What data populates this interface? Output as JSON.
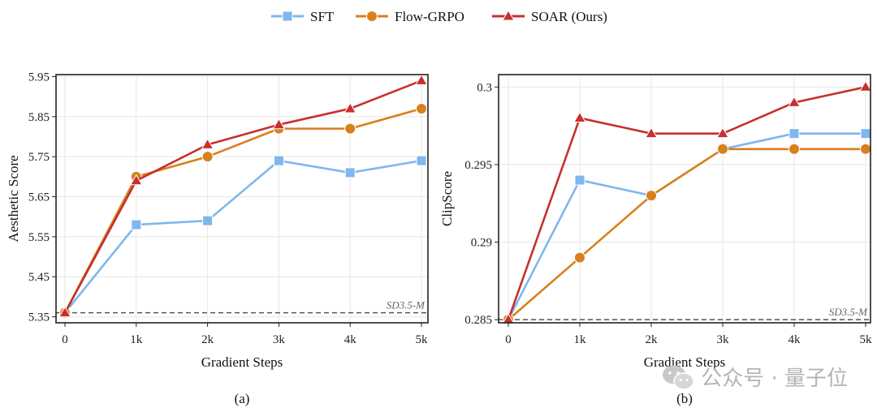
{
  "legend": [
    {
      "name": "SFT",
      "color": "#7fb7ee",
      "marker": "square"
    },
    {
      "name": "Flow-GRPO",
      "color": "#d8801d",
      "marker": "circle"
    },
    {
      "name": "SOAR (Ours)",
      "color": "#c7302f",
      "marker": "triangle"
    }
  ],
  "watermark": {
    "text": "公众号 · 量子位",
    "icon": "wechat-icon"
  },
  "chart_data": [
    {
      "type": "line",
      "panel_label": "(a)",
      "xlabel": "Gradient Steps",
      "ylabel": "Aesthetic Score",
      "categories": [
        "0",
        "1k",
        "2k",
        "3k",
        "4k",
        "5k"
      ],
      "ylim": [
        5.335,
        5.955
      ],
      "yticks": [
        "5.35",
        "5.45",
        "5.55",
        "5.65",
        "5.75",
        "5.85",
        "5.95"
      ],
      "grid": true,
      "baseline": {
        "label": "SD3.5-M",
        "value": 5.36
      },
      "series": [
        {
          "name": "SFT",
          "values": [
            5.36,
            5.58,
            5.59,
            5.74,
            5.71,
            5.74
          ]
        },
        {
          "name": "Flow-GRPO",
          "values": [
            5.36,
            5.7,
            5.75,
            5.82,
            5.82,
            5.87
          ]
        },
        {
          "name": "SOAR (Ours)",
          "values": [
            5.36,
            5.69,
            5.78,
            5.83,
            5.87,
            5.94
          ]
        }
      ]
    },
    {
      "type": "line",
      "panel_label": "(b)",
      "xlabel": "Gradient Steps",
      "ylabel": "ClipScore",
      "categories": [
        "0",
        "1k",
        "2k",
        "3k",
        "4k",
        "5k"
      ],
      "ylim": [
        0.2848,
        0.3008
      ],
      "yticks": [
        "0.285",
        "0.29",
        "0.295",
        "0.3"
      ],
      "grid": true,
      "baseline": {
        "label": "SD3.5-M",
        "value": 0.285
      },
      "series": [
        {
          "name": "SFT",
          "values": [
            0.285,
            0.294,
            0.293,
            0.296,
            0.297,
            0.297
          ]
        },
        {
          "name": "Flow-GRPO",
          "values": [
            0.285,
            0.289,
            0.293,
            0.296,
            0.296,
            0.296
          ]
        },
        {
          "name": "SOAR (Ours)",
          "values": [
            0.285,
            0.298,
            0.297,
            0.297,
            0.299,
            0.3
          ]
        }
      ]
    }
  ]
}
